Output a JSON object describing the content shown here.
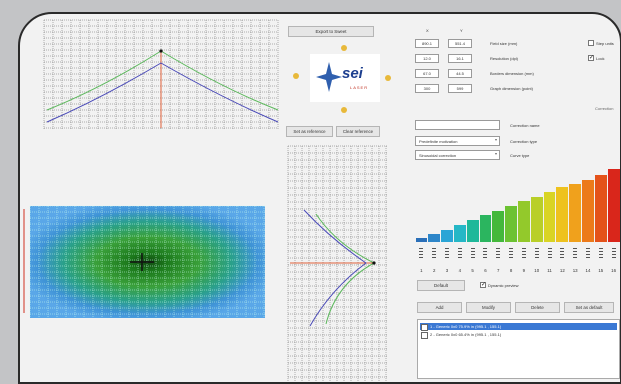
{
  "toolbar": {
    "export_label": "Export to Sweet",
    "set_reference_label": "Set as reference",
    "clear_reference_label": "Clear reference"
  },
  "logo": {
    "text": "sei",
    "subtext": "LASER"
  },
  "params": {
    "col_x": "X",
    "col_y": "Y",
    "rows": [
      {
        "x": "890.1",
        "y": "551.4",
        "label": "Field size (mm)"
      },
      {
        "x": "12.0",
        "y": "16.1",
        "label": "Resolution (dpi)"
      },
      {
        "x": "67.0",
        "y": "44.5",
        "label": "Borders dimension (mm)"
      },
      {
        "x": "300",
        "y": "599",
        "label": "Graph dimension (point)"
      }
    ],
    "chk_a_label": "Step units",
    "chk_b_label": "Lock",
    "right_section_label": "Correction",
    "corr_name_label": "Correction name",
    "corr_name_value": "",
    "corr_type_label": "Correction type",
    "corr_type_value": "Predefinite motivation",
    "curve_type_label": "Curve type",
    "curve_type_value": "Sinusoidal correction"
  },
  "bars": {
    "levels": [
      0.05,
      0.1,
      0.16,
      0.22,
      0.28,
      0.35,
      0.4,
      0.46,
      0.52,
      0.58,
      0.64,
      0.7,
      0.75,
      0.8,
      0.86,
      0.93
    ],
    "colors": [
      "#2a6fb8",
      "#2e86c9",
      "#2aa5d6",
      "#25b7c6",
      "#1fb89a",
      "#2bb55f",
      "#44b83b",
      "#6cc232",
      "#93c92b",
      "#b9cf28",
      "#d9d424",
      "#eec21e",
      "#f0a11c",
      "#ec7a1a",
      "#e4521a",
      "#d9261b"
    ],
    "numbers": [
      "1",
      "2",
      "3",
      "4",
      "5",
      "6",
      "7",
      "8",
      "9",
      "10",
      "11",
      "12",
      "13",
      "14",
      "15",
      "16"
    ]
  },
  "controls": {
    "default_label": "Default",
    "dynamic_preview_label": "Dynamic preview",
    "add_label": "Add",
    "modify_label": "Modify",
    "delete_label": "Delete",
    "set_default_label": "Set as default"
  },
  "list": {
    "items": [
      "1 - Generic 0x0 75.9% in (995.1 , 155.1)",
      "2 - Generic 0x0 65.4% in (995.1 , 155.1)"
    ]
  },
  "colors": {
    "accent": "#3a78d4",
    "curve_green": "#5cb85c",
    "curve_blue": "#4a4ab8",
    "marker_red": "#e05030"
  }
}
